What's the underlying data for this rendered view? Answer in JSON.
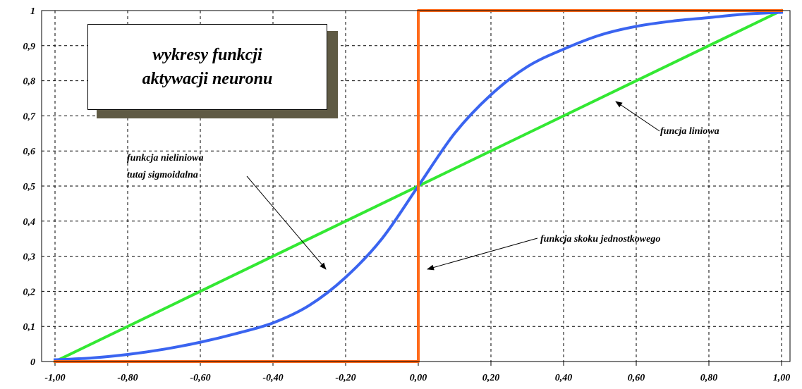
{
  "chart_data": {
    "type": "line",
    "title": "wykresy funkcji aktywacji neuronu",
    "title_lines": [
      "wykresy funkcji",
      "aktywacji neuronu"
    ],
    "xlim": [
      -1.0,
      1.0
    ],
    "ylim": [
      0,
      1
    ],
    "x_ticks": [
      "-1,00",
      "-0,80",
      "-0,60",
      "-0,40",
      "-0,20",
      "0,00",
      "0,20",
      "0,40",
      "0,60",
      "0,80",
      "1,00"
    ],
    "y_ticks": [
      "0",
      "0,1",
      "0,2",
      "0,3",
      "0,4",
      "0,5",
      "0,6",
      "0,7",
      "0,8",
      "0,9",
      "1"
    ],
    "grid": true,
    "series": [
      {
        "id": "sigmoid",
        "color": "#3a64f0",
        "x": [
          -1.0,
          -0.9,
          -0.8,
          -0.7,
          -0.6,
          -0.5,
          -0.4,
          -0.3,
          -0.2,
          -0.1,
          0.0,
          0.1,
          0.2,
          0.3,
          0.4,
          0.5,
          0.6,
          0.7,
          0.8,
          0.9,
          1.0
        ],
        "y": [
          0.005,
          0.01,
          0.02,
          0.035,
          0.055,
          0.08,
          0.11,
          0.16,
          0.24,
          0.35,
          0.5,
          0.65,
          0.76,
          0.84,
          0.89,
          0.93,
          0.955,
          0.97,
          0.98,
          0.99,
          0.995
        ]
      },
      {
        "id": "linear",
        "color": "#33e833",
        "x": [
          -1.0,
          1.0
        ],
        "y": [
          0.0,
          1.0
        ]
      },
      {
        "id": "step",
        "color": "#ff6a1a",
        "x": [
          -1.0,
          0.0,
          0.0,
          1.0
        ],
        "y": [
          0.0,
          0.0,
          1.0,
          1.0
        ]
      }
    ],
    "annotations": [
      {
        "id": "nonlinear",
        "lines": [
          "funkcja nieliniowa",
          "tutaj sigmoidalna"
        ]
      },
      {
        "id": "linear",
        "lines": [
          "funcja liniowa"
        ]
      },
      {
        "id": "step",
        "lines": [
          "funkcja skoku jednostkowego"
        ]
      }
    ]
  }
}
